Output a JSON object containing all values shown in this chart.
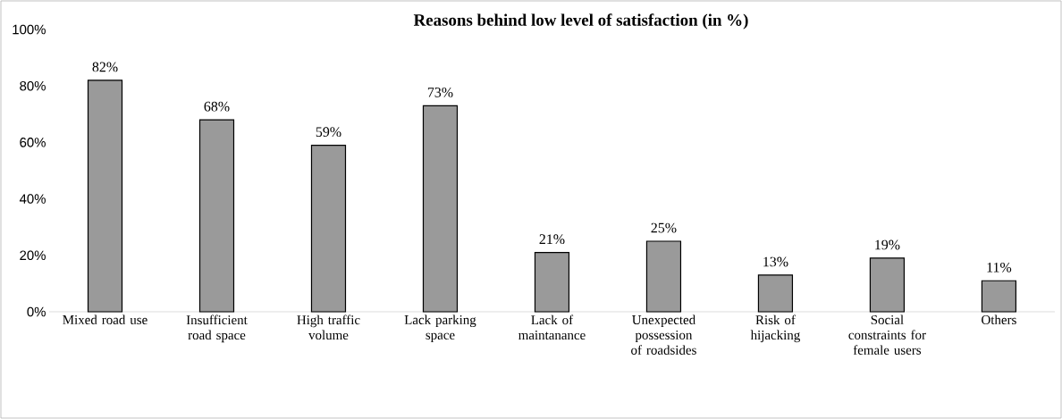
{
  "chart_data": {
    "type": "bar",
    "title": "Reasons behind low level of satisfaction (in %)",
    "categories": [
      "Mixed road use",
      "Insufficient road space",
      "High traffic volume",
      "Lack parking space",
      "Lack of maintanance",
      "Unexpected possession of roadsides",
      "Risk of hijacking",
      "Social constraints for female users",
      "Others"
    ],
    "values": [
      82,
      68,
      59,
      73,
      21,
      25,
      13,
      19,
      11
    ],
    "value_labels": [
      "82%",
      "68%",
      "59%",
      "73%",
      "21%",
      "25%",
      "13%",
      "19%",
      "11%"
    ],
    "color": "#9a9a9a",
    "ylim": [
      0,
      100
    ],
    "yticks": [
      {
        "value": 0,
        "label": "0%"
      },
      {
        "value": 20,
        "label": "20%"
      },
      {
        "value": 40,
        "label": "40%"
      },
      {
        "value": 60,
        "label": "60%"
      },
      {
        "value": 80,
        "label": "80%"
      },
      {
        "value": 100,
        "label": "100%"
      }
    ],
    "grid": false
  }
}
